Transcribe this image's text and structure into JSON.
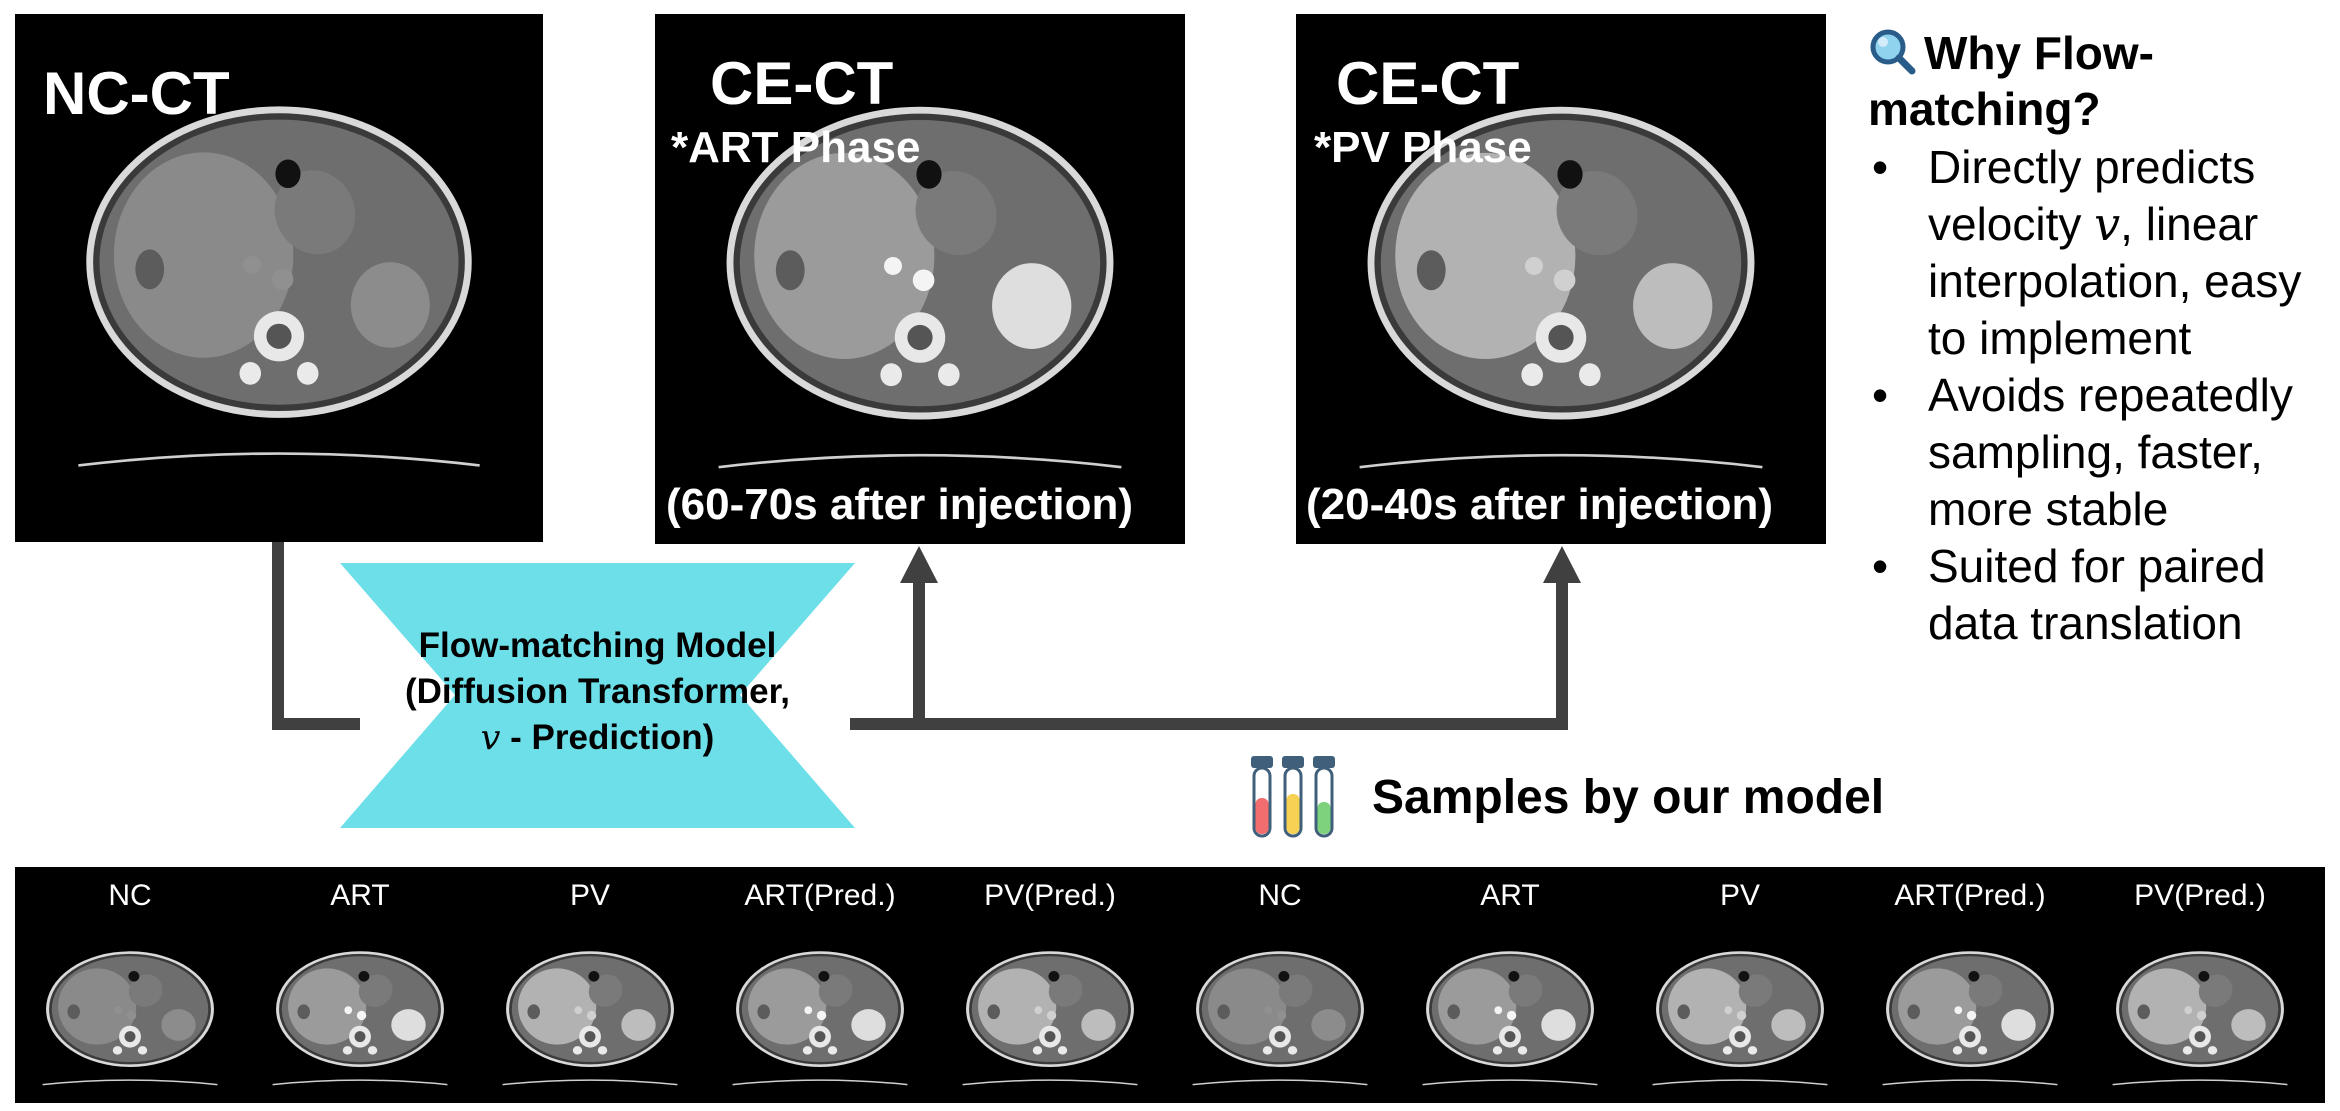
{
  "panels": [
    {
      "id": "nc",
      "title": "NC-CT",
      "subtitle": "",
      "caption": ""
    },
    {
      "id": "art",
      "title": "CE-CT",
      "subtitle": "*ART Phase",
      "caption": "(60-70s after injection)"
    },
    {
      "id": "pv",
      "title": "CE-CT",
      "subtitle": "*PV Phase",
      "caption": "(20-40s after injection)"
    }
  ],
  "model": {
    "line1": "Flow-matching Model",
    "line2": "(Diffusion Transformer,",
    "line3_symbol": "v",
    "line3_text": " - Prediction)",
    "fill_color": "#6ddfe9"
  },
  "why": {
    "icon": "magnifier-icon",
    "title": "Why Flow-matching?",
    "bullet_char": "•",
    "items": [
      {
        "pre": "Directly predicts velocity ",
        "symbol": "v",
        "post": ", linear interpolation, easy to implement"
      },
      {
        "pre": "Avoids repeatedly sampling, faster, more stable",
        "symbol": "",
        "post": ""
      },
      {
        "pre": "Suited for paired data translation",
        "symbol": "",
        "post": ""
      }
    ]
  },
  "samples": {
    "icon": "test-tubes-icon",
    "heading": "Samples by our model",
    "labels": [
      "NC",
      "ART",
      "PV",
      "ART(Pred.)",
      "PV(Pred.)",
      "NC",
      "ART",
      "PV",
      "ART(Pred.)",
      "PV(Pred.)"
    ]
  },
  "colors": {
    "arrow": "#404040",
    "model_fill": "#6ddfe9",
    "tube_red": "#f26d6d",
    "tube_yellow": "#f7d154",
    "tube_green": "#7ed27e",
    "tube_cap": "#3f5f7a"
  }
}
